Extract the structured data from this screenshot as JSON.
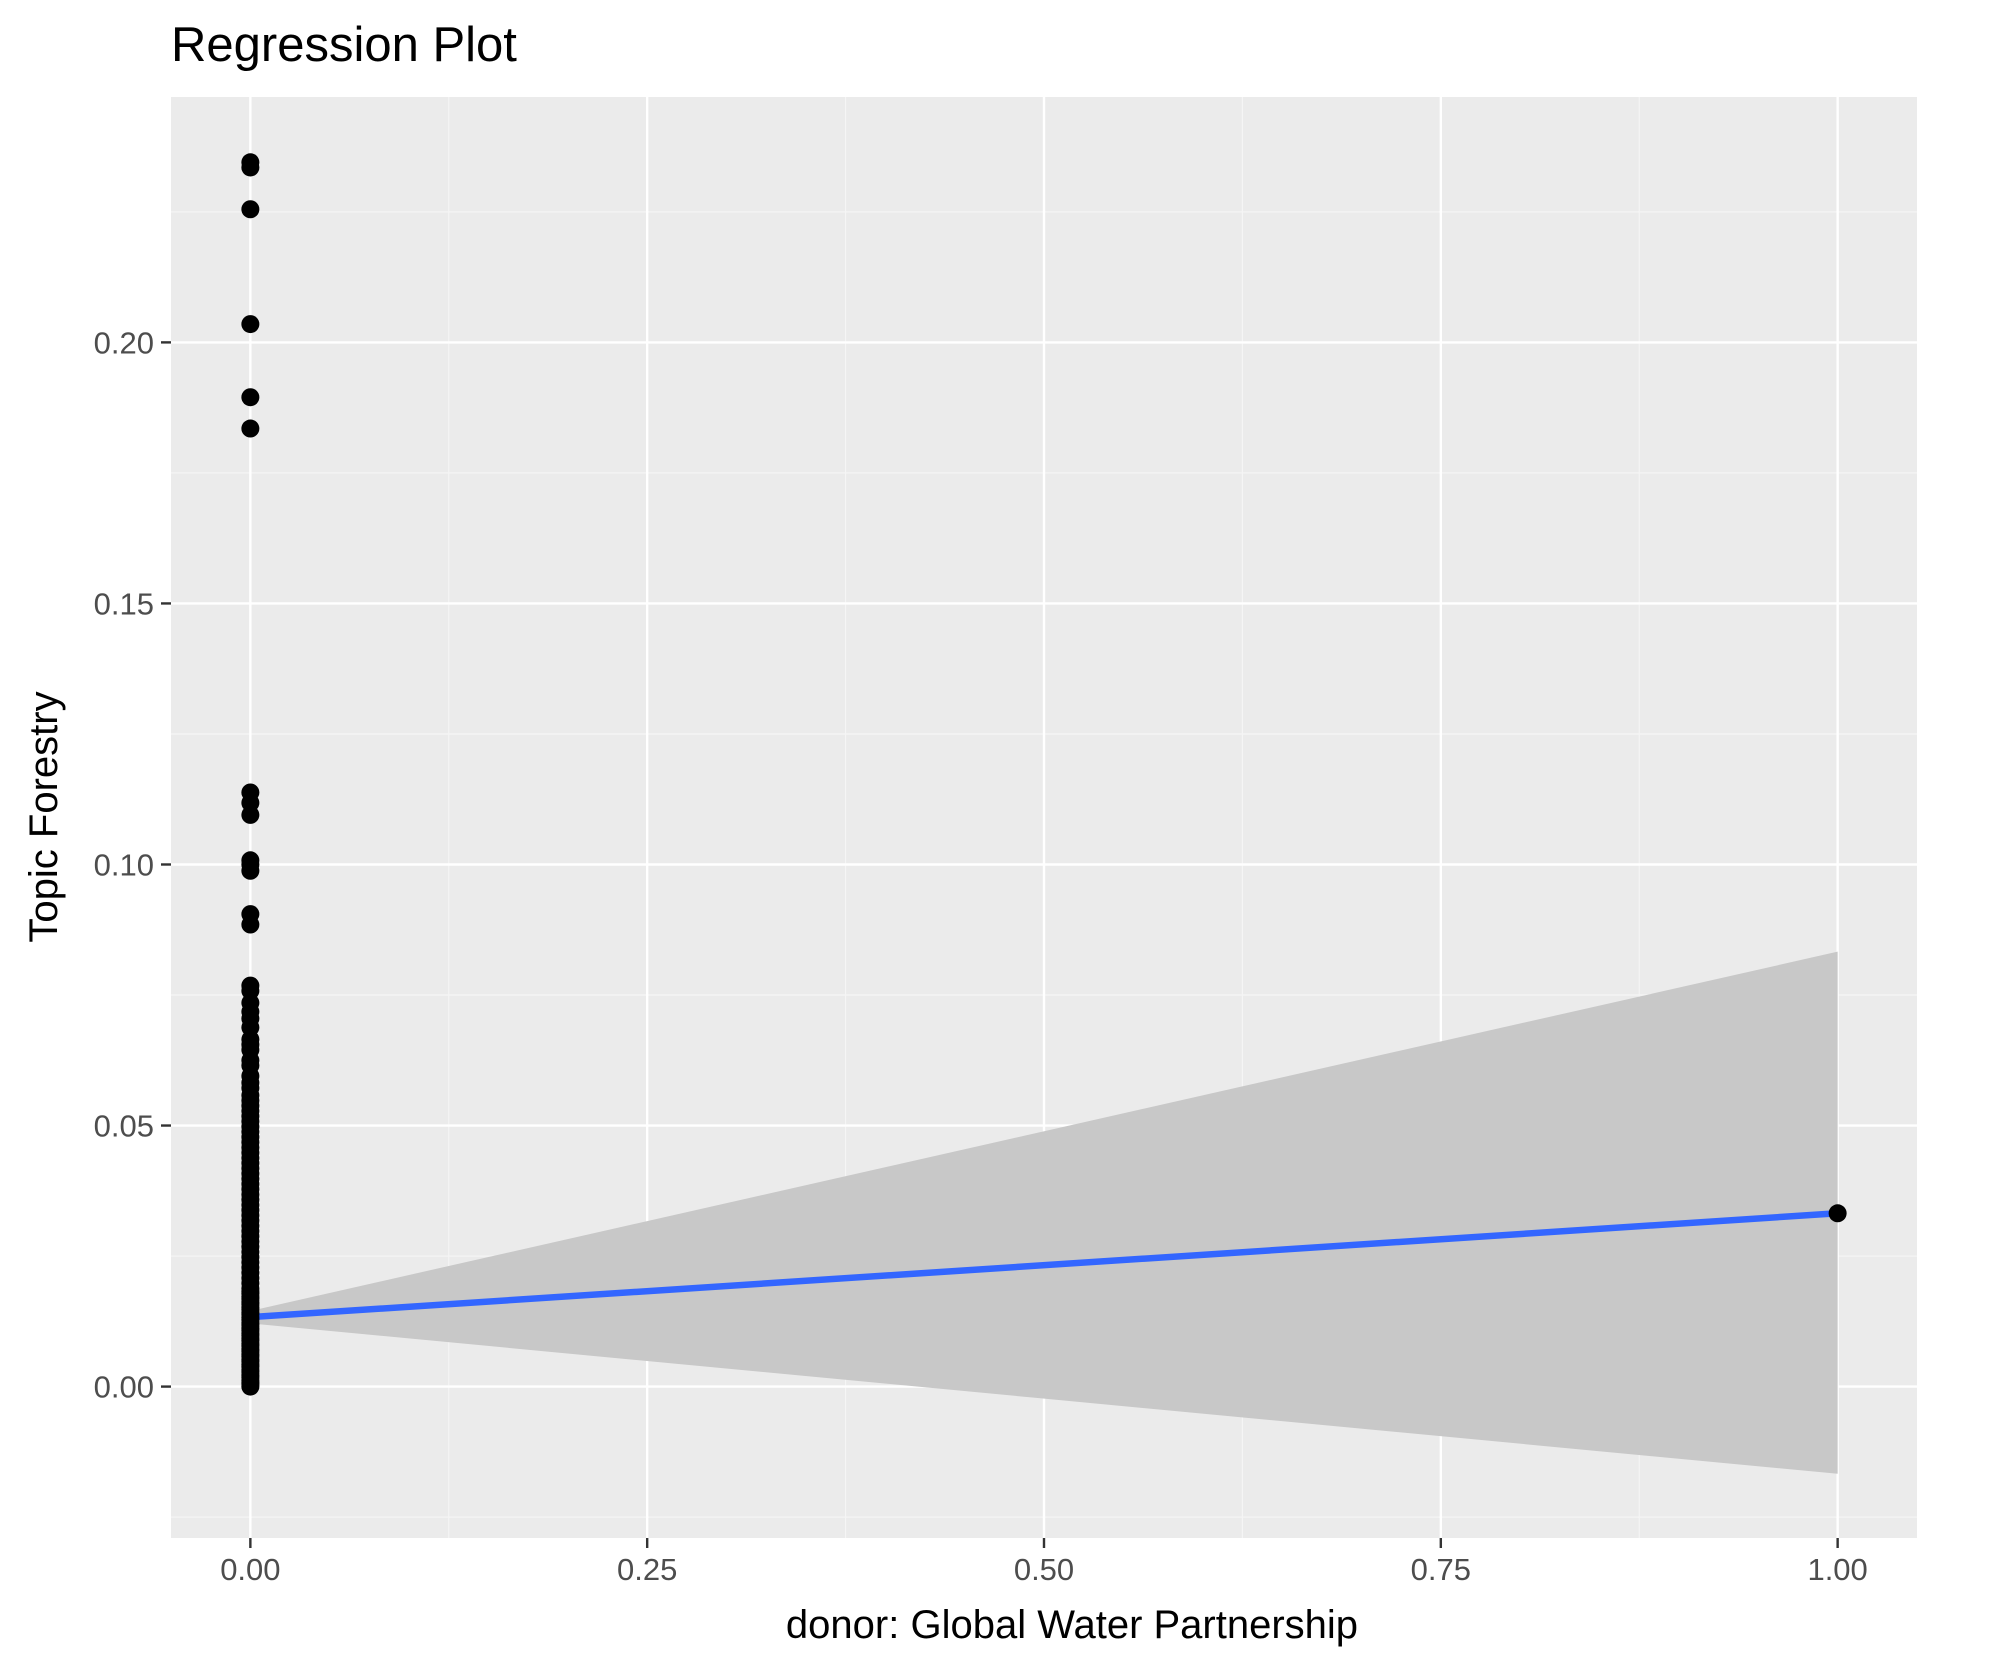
{
  "chart_data": {
    "type": "scatter",
    "title": "Regression Plot",
    "xlabel": "donor: Global Water Partnership",
    "ylabel": "Topic Forestry",
    "xlim": [
      -0.05,
      1.05
    ],
    "ylim": [
      -0.029,
      0.247
    ],
    "x_ticks": [
      0.0,
      0.25,
      0.5,
      0.75,
      1.0
    ],
    "x_tick_labels": [
      "0.00",
      "0.25",
      "0.50",
      "0.75",
      "1.00"
    ],
    "y_ticks": [
      0.0,
      0.05,
      0.1,
      0.15,
      0.2
    ],
    "y_tick_labels": [
      "0.00",
      "0.05",
      "0.10",
      "0.15",
      "0.20"
    ],
    "grid": true,
    "legend": "none",
    "series": [
      {
        "type": "scatter",
        "x": [
          0,
          0,
          0,
          0,
          0,
          0,
          0,
          0,
          0,
          0,
          0,
          0,
          0,
          0,
          0,
          0,
          0,
          0,
          0,
          0,
          0,
          0,
          0,
          0,
          0,
          0,
          0,
          0,
          0,
          0,
          0,
          0,
          0,
          0,
          0,
          0,
          0,
          0,
          0,
          0,
          0,
          0,
          0,
          0,
          0,
          0,
          0,
          0,
          0,
          0,
          0,
          0,
          0,
          0,
          0,
          0,
          0,
          0,
          0,
          0,
          0,
          0,
          0,
          0,
          0,
          0,
          0,
          0,
          0,
          0,
          0,
          0,
          0,
          0,
          0,
          0,
          0,
          0,
          0,
          0,
          0,
          0,
          0,
          0,
          0,
          0,
          0,
          0,
          0,
          0,
          0,
          0,
          0,
          0,
          0,
          0,
          0,
          0,
          0,
          0,
          0,
          0,
          0,
          0,
          1
        ],
        "y": [
          0.2345,
          0.2335,
          0.2255,
          0.2035,
          0.1895,
          0.1835,
          0.1138,
          0.1118,
          0.1095,
          0.1008,
          0.1,
          0.0988,
          0.0905,
          0.0885,
          0.0768,
          0.0758,
          0.0735,
          0.0718,
          0.0705,
          0.0688,
          0.0665,
          0.0655,
          0.0645,
          0.0625,
          0.0615,
          0.0595,
          0.0582,
          0.0572,
          0.0558,
          0.0548,
          0.0538,
          0.0528,
          0.0518,
          0.0508,
          0.0498,
          0.0488,
          0.0478,
          0.0468,
          0.0458,
          0.0448,
          0.0438,
          0.0428,
          0.0418,
          0.0408,
          0.0398,
          0.0388,
          0.0378,
          0.0368,
          0.0358,
          0.0348,
          0.0338,
          0.0328,
          0.0318,
          0.0308,
          0.0298,
          0.0288,
          0.0278,
          0.0268,
          0.0258,
          0.0248,
          0.0238,
          0.0228,
          0.0218,
          0.0208,
          0.0198,
          0.0188,
          0.0178,
          0.0168,
          0.0158,
          0.0148,
          0.0138,
          0.0128,
          0.0118,
          0.0108,
          0.0098,
          0.0088,
          0.0078,
          0.0068,
          0.0058,
          0.0048,
          0.0038,
          0.0028,
          0.0018,
          0.0008,
          0.0,
          0.0005,
          0.0012,
          0.0022,
          0.0032,
          0.0042,
          0.0052,
          0.0062,
          0.0072,
          0.0082,
          0.0092,
          0.0102,
          0.0112,
          0.0122,
          0.0132,
          0.0142,
          0.0152,
          0.0162,
          0.0172,
          0.0182,
          0.0332
        ]
      },
      {
        "type": "line",
        "x": [
          0,
          1
        ],
        "y": [
          0.0133,
          0.0332
        ]
      },
      {
        "type": "area",
        "x": [
          0,
          1
        ],
        "y_upper": [
          0.0145,
          0.0833
        ],
        "y_lower": [
          0.0121,
          -0.0167
        ]
      }
    ],
    "colors": {
      "panel_background": "#ebebeb",
      "grid_major": "#ffffff",
      "grid_minor": "#f5f5f5",
      "points": "#000000",
      "regression_line": "#3366ff",
      "confidence_band": "#c8c8c8",
      "tick_label": "#4d4d4d",
      "tick_mark": "#333333"
    }
  }
}
